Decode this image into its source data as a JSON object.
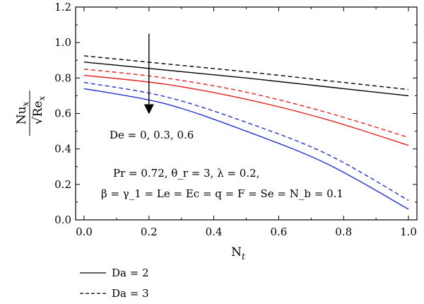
{
  "chart_data": {
    "type": "line",
    "xlabel": "N",
    "xlabel_sub": "t",
    "ylabel_num": "Nu",
    "ylabel_num_sub": "x",
    "ylabel_den": "Re",
    "ylabel_den_sub": "x",
    "xlim": [
      0.0,
      1.0
    ],
    "ylim": [
      0.0,
      1.2
    ],
    "xticks": [
      "0.0",
      "0.2",
      "0.4",
      "0.6",
      "0.8",
      "1.0"
    ],
    "yticks": [
      "0.0",
      "0.2",
      "0.4",
      "0.6",
      "0.8",
      "1.0",
      "1.2"
    ],
    "grid": false,
    "x": [
      0.0,
      0.25,
      0.5,
      0.75,
      1.0
    ],
    "series": [
      {
        "style": "solid",
        "color": "#000000",
        "values": [
          0.89,
          0.845,
          0.8,
          0.75,
          0.7
        ]
      },
      {
        "style": "dashed",
        "color": "#000000",
        "values": [
          0.925,
          0.88,
          0.835,
          0.785,
          0.735
        ]
      },
      {
        "style": "solid",
        "color": "#e02020",
        "values": [
          0.815,
          0.765,
          0.68,
          0.565,
          0.42
        ]
      },
      {
        "style": "dashed",
        "color": "#e02020",
        "values": [
          0.85,
          0.8,
          0.72,
          0.605,
          0.465
        ]
      },
      {
        "style": "solid",
        "color": "#2030d0",
        "values": [
          0.74,
          0.655,
          0.5,
          0.315,
          0.06
        ]
      },
      {
        "style": "dashed",
        "color": "#2030d0",
        "values": [
          0.775,
          0.695,
          0.55,
          0.37,
          0.11
        ]
      }
    ],
    "annotation_arrow": {
      "x": 0.2,
      "y_from": 1.05,
      "y_to": 0.6
    },
    "annotations": {
      "de": "De = 0, 0.3, 0.6",
      "params_line1": "Pr = 0.72, θ_r = 3, λ = 0.2,",
      "params_line2": "β = γ_1 = Le = Ec = q = F = Se = N_b = 0.1"
    },
    "legend": {
      "placement": "below",
      "entries": [
        {
          "label": "Da = 2",
          "style": "solid"
        },
        {
          "label": "Da = 3",
          "style": "dashed"
        }
      ]
    }
  }
}
